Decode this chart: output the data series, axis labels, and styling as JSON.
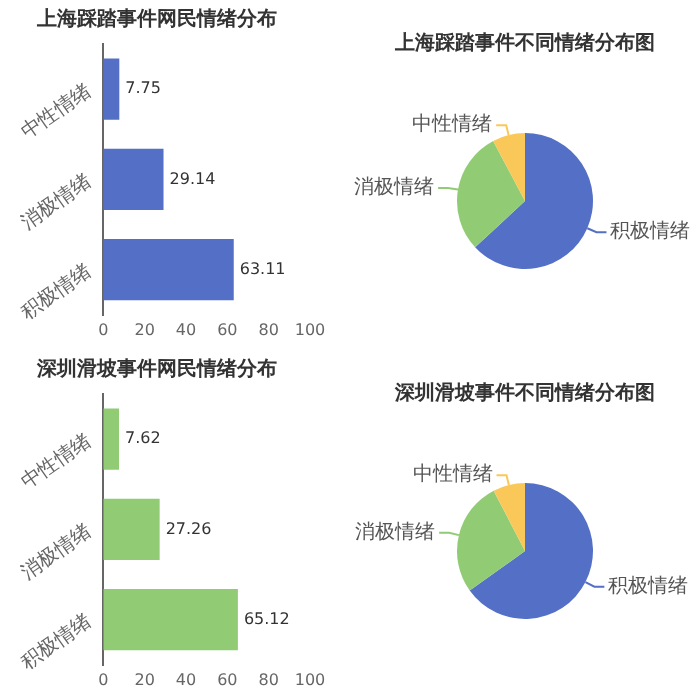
{
  "chart_data": [
    {
      "type": "bar",
      "title": "上海踩踏事件网民情绪分布",
      "orientation": "horizontal",
      "categories": [
        "中性情绪",
        "消极情绪",
        "积极情绪"
      ],
      "values": [
        7.75,
        29.14,
        63.11
      ],
      "color": "#5470c6",
      "xlim": [
        0,
        100
      ],
      "xticks": [
        0,
        20,
        40,
        60,
        80,
        100
      ],
      "grid": false,
      "legend": false,
      "data_labels": true
    },
    {
      "type": "pie",
      "title": "上海踩踏事件不同情绪分布图",
      "categories": [
        "积极情绪",
        "消极情绪",
        "中性情绪"
      ],
      "values": [
        63.11,
        29.14,
        7.75
      ],
      "colors": [
        "#5470c6",
        "#91cc75",
        "#fac858"
      ],
      "legend": false
    },
    {
      "type": "bar",
      "title": "深圳滑坡事件网民情绪分布",
      "orientation": "horizontal",
      "categories": [
        "中性情绪",
        "消极情绪",
        "积极情绪"
      ],
      "values": [
        7.62,
        27.26,
        65.12
      ],
      "color": "#91cc75",
      "xlim": [
        0,
        100
      ],
      "xticks": [
        0,
        20,
        40,
        60,
        80,
        100
      ],
      "grid": false,
      "legend": false,
      "data_labels": true
    },
    {
      "type": "pie",
      "title": "深圳滑坡事件不同情绪分布图",
      "categories": [
        "积极情绪",
        "消极情绪",
        "中性情绪"
      ],
      "values": [
        65.12,
        27.26,
        7.62
      ],
      "colors": [
        "#5470c6",
        "#91cc75",
        "#fac858"
      ],
      "legend": false
    }
  ]
}
